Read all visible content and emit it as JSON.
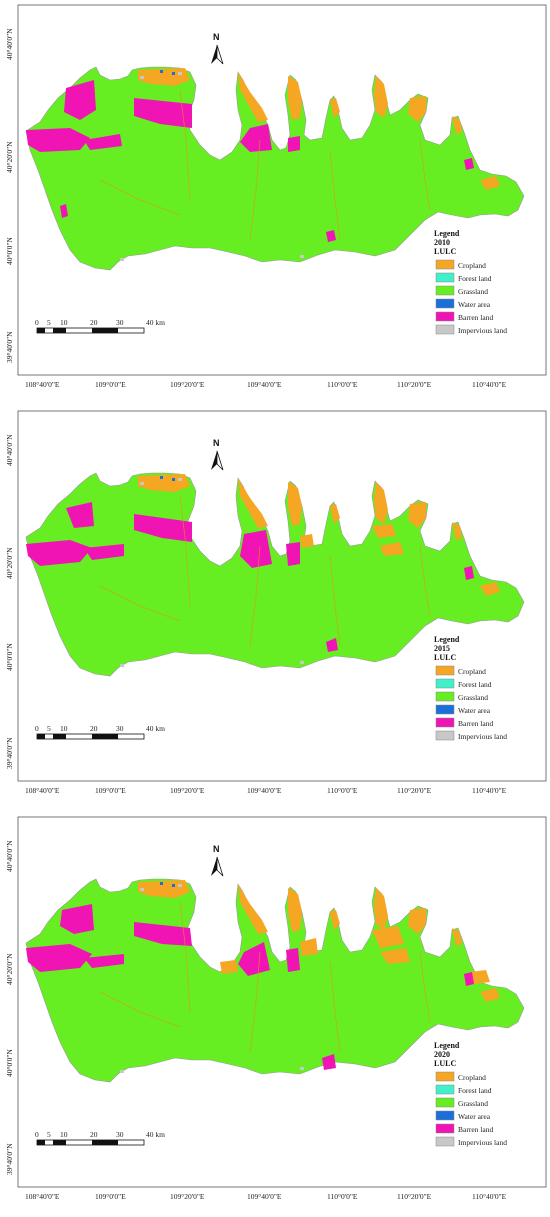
{
  "maps": [
    {
      "year": "2010"
    },
    {
      "year": "2015"
    },
    {
      "year": "2020"
    }
  ],
  "legend": {
    "title": "Legend",
    "subtitle": "LULC",
    "classes": [
      {
        "label": "Cropland",
        "color": "#f5a623"
      },
      {
        "label": "Forest land",
        "color": "#3ff0c8"
      },
      {
        "label": "Grassland",
        "color": "#66ee22"
      },
      {
        "label": "Water area",
        "color": "#1a6fd8"
      },
      {
        "label": "Barren land",
        "color": "#f014b4"
      },
      {
        "label": "Impervious land",
        "color": "#c8c8c8"
      }
    ]
  },
  "longitude_labels": [
    "108°40'0\"E",
    "109°0'0\"E",
    "109°20'0\"E",
    "109°40'0\"E",
    "110°0'0\"E",
    "110°20'0\"E",
    "110°40'0\"E"
  ],
  "latitude_labels": [
    "40°40'0\"N",
    "40°20'0\"N",
    "40°0'0\"N",
    "39°40'0\"N"
  ],
  "north_arrow": {
    "label": "N",
    "icon": "north-arrow-icon"
  },
  "scale_bar": {
    "ticks": [
      "0",
      "5",
      "10",
      "20",
      "30",
      "40 km"
    ]
  }
}
